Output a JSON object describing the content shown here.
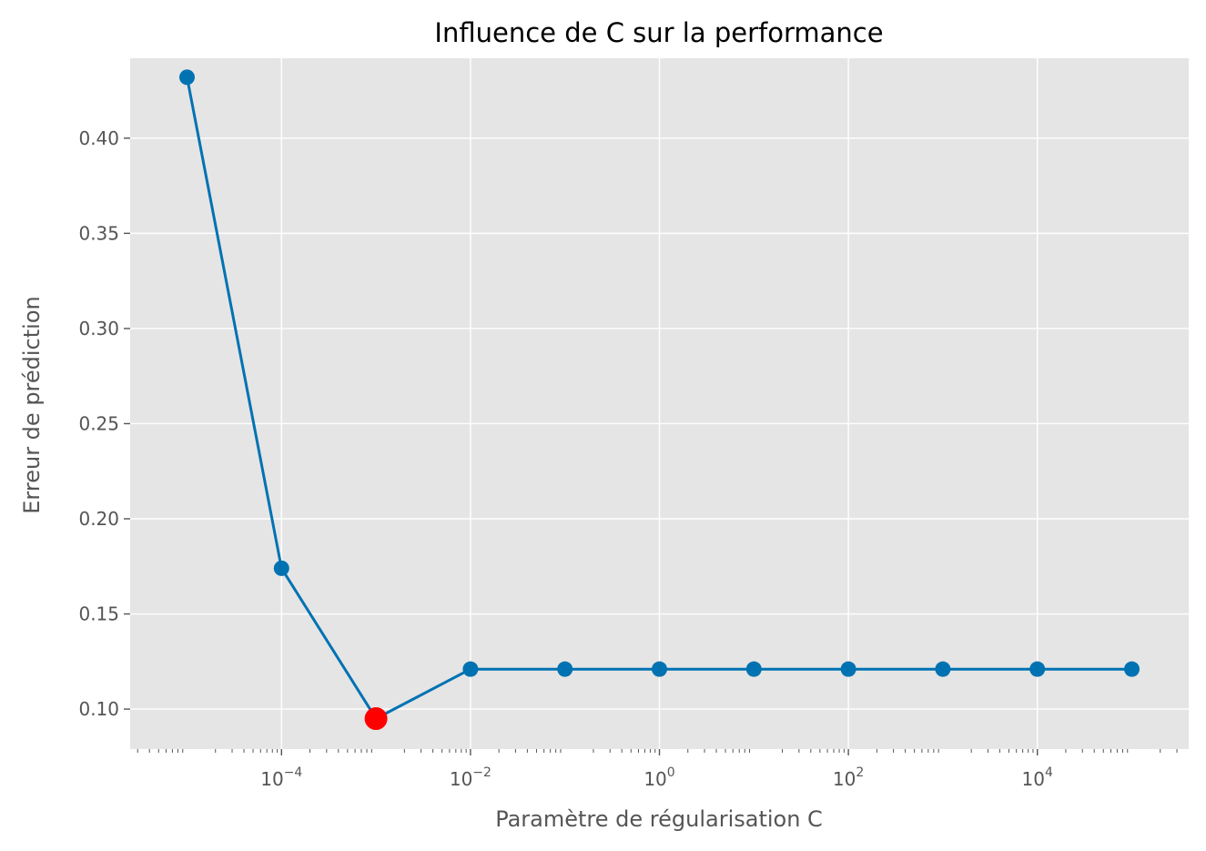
{
  "chart_data": {
    "type": "line",
    "title": "Influence de C sur la performance",
    "xlabel": "Paramètre de régularisation C",
    "ylabel": "Erreur de prédiction",
    "x_scale": "log",
    "xlim": [
      2.5e-06,
      400000
    ],
    "ylim": [
      0.079,
      0.442
    ],
    "grid": true,
    "x": [
      1e-05,
      0.0001,
      0.001,
      0.01,
      0.1,
      1,
      10,
      100,
      1000,
      10000,
      100000
    ],
    "series": [
      {
        "values": [
          0.432,
          0.174,
          0.095,
          0.121,
          0.121,
          0.121,
          0.121,
          0.121,
          0.121,
          0.121,
          0.121
        ]
      }
    ],
    "highlight": {
      "x": 0.001,
      "y": 0.095
    },
    "x_ticks": [
      {
        "value": 0.0001,
        "base": "10",
        "exp": "−4"
      },
      {
        "value": 0.01,
        "base": "10",
        "exp": "−2"
      },
      {
        "value": 1,
        "base": "10",
        "exp": "0"
      },
      {
        "value": 100,
        "base": "10",
        "exp": "2"
      },
      {
        "value": 10000,
        "base": "10",
        "exp": "4"
      }
    ],
    "y_ticks": [
      {
        "value": 0.1,
        "label": "0.10"
      },
      {
        "value": 0.15,
        "label": "0.15"
      },
      {
        "value": 0.2,
        "label": "0.20"
      },
      {
        "value": 0.25,
        "label": "0.25"
      },
      {
        "value": 0.3,
        "label": "0.30"
      },
      {
        "value": 0.35,
        "label": "0.35"
      },
      {
        "value": 0.4,
        "label": "0.40"
      }
    ],
    "colors": {
      "line": "#0072b2",
      "highlight": "#ff0000",
      "panel": "#e5e5e5",
      "grid": "#ffffff"
    }
  }
}
